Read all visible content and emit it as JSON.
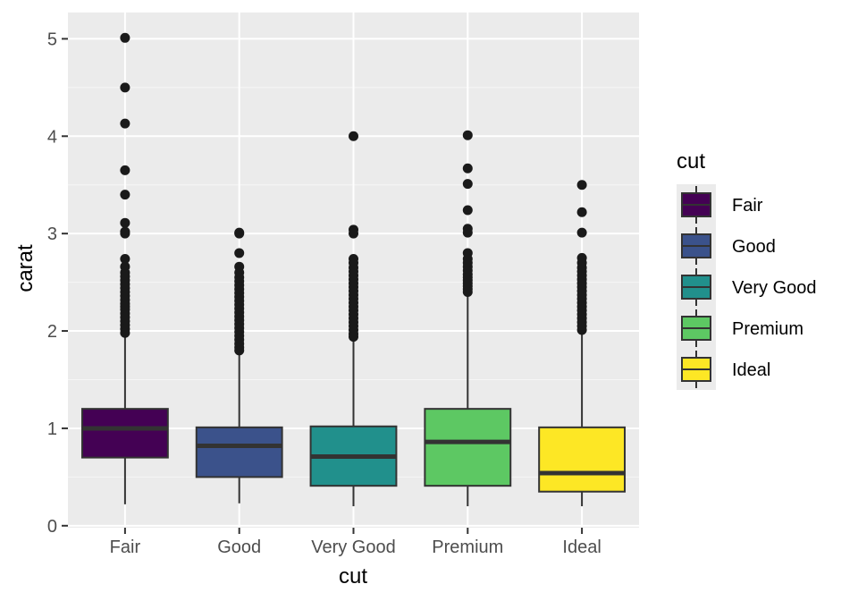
{
  "chart_data": {
    "type": "boxplot",
    "title": "",
    "xlabel": "cut",
    "ylabel": "carat",
    "ylim": [
      -0.02,
      5.27
    ],
    "y_ticks": [
      0,
      1,
      2,
      3,
      4,
      5
    ],
    "grid": true,
    "categories": [
      "Fair",
      "Good",
      "Very Good",
      "Premium",
      "Ideal"
    ],
    "boxes": [
      {
        "name": "Fair",
        "color": "#440154",
        "whisker_low": 0.22,
        "q1": 0.7,
        "median": 1.0,
        "q3": 1.2,
        "whisker_high": 1.95,
        "outliers": [
          5.01,
          4.5,
          4.13,
          3.65,
          3.4,
          3.11,
          3.02,
          3.0,
          2.74,
          2.66,
          2.6,
          2.56,
          2.52,
          2.48,
          2.44,
          2.4,
          2.36,
          2.32,
          2.28,
          2.25,
          2.22,
          2.18,
          2.14,
          2.1,
          2.06,
          2.02,
          1.98
        ]
      },
      {
        "name": "Good",
        "color": "#3B528B",
        "whisker_low": 0.23,
        "q1": 0.5,
        "median": 0.82,
        "q3": 1.01,
        "whisker_high": 1.76,
        "outliers": [
          3.01,
          3.0,
          2.8,
          2.66,
          2.6,
          2.55,
          2.51,
          2.47,
          2.43,
          2.39,
          2.35,
          2.31,
          2.27,
          2.23,
          2.19,
          2.15,
          2.11,
          2.07,
          2.03,
          1.99,
          1.95,
          1.91,
          1.87,
          1.83,
          1.8
        ]
      },
      {
        "name": "Very Good",
        "color": "#21908C",
        "whisker_low": 0.2,
        "q1": 0.41,
        "median": 0.71,
        "q3": 1.02,
        "whisker_high": 1.92,
        "outliers": [
          4.0,
          3.04,
          3.0,
          2.74,
          2.7,
          2.65,
          2.61,
          2.57,
          2.53,
          2.49,
          2.45,
          2.41,
          2.37,
          2.33,
          2.29,
          2.25,
          2.21,
          2.17,
          2.13,
          2.09,
          2.05,
          2.01,
          1.97,
          1.94
        ]
      },
      {
        "name": "Premium",
        "color": "#5DC863",
        "whisker_low": 0.2,
        "q1": 0.41,
        "median": 0.86,
        "q3": 1.2,
        "whisker_high": 2.38,
        "outliers": [
          4.01,
          3.67,
          3.51,
          3.24,
          3.05,
          3.01,
          2.8,
          2.74,
          2.7,
          2.66,
          2.62,
          2.58,
          2.55,
          2.52,
          2.49,
          2.46,
          2.43,
          2.4
        ]
      },
      {
        "name": "Ideal",
        "color": "#FDE725",
        "whisker_low": 0.2,
        "q1": 0.35,
        "median": 0.54,
        "q3": 1.01,
        "whisker_high": 1.99,
        "outliers": [
          3.5,
          3.22,
          3.01,
          2.75,
          2.7,
          2.65,
          2.61,
          2.57,
          2.53,
          2.49,
          2.45,
          2.41,
          2.37,
          2.33,
          2.29,
          2.25,
          2.21,
          2.17,
          2.13,
          2.09,
          2.05,
          2.01
        ]
      }
    ],
    "legend": {
      "title": "cut",
      "placement": "right",
      "items": [
        {
          "label": "Fair",
          "color": "#440154"
        },
        {
          "label": "Good",
          "color": "#3B528B"
        },
        {
          "label": "Very Good",
          "color": "#21908C"
        },
        {
          "label": "Premium",
          "color": "#5DC863"
        },
        {
          "label": "Ideal",
          "color": "#FDE725"
        }
      ]
    }
  },
  "colors": {
    "panel_background": "#EBEBEB",
    "grid_major": "#FFFFFF",
    "grid_minor": "#F5F5F5",
    "box_outline": "#333333",
    "outlier": "#1A1A1A",
    "axis_text": "#4D4D4D",
    "axis_title": "#000000"
  }
}
